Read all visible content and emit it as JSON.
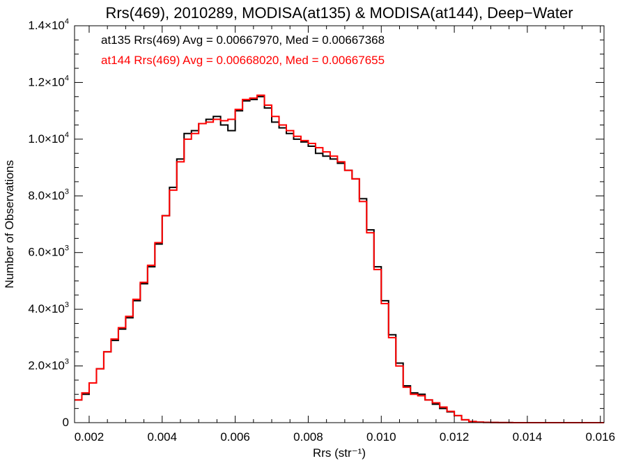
{
  "chart_data": {
    "type": "line",
    "title": "Rrs(469), 2010289, MODISA(at135) & MODISA(at144), Deep−Water",
    "xlabel": "Rrs (str⁻¹)",
    "ylabel": "Number of Observations",
    "xlim": [
      0.0016,
      0.0161
    ],
    "ylim": [
      0,
      14000
    ],
    "x_ticks": [
      0.002,
      0.004,
      0.006,
      0.008,
      0.01,
      0.012,
      0.014,
      0.016
    ],
    "x_tick_labels": [
      "0.002",
      "0.004",
      "0.006",
      "0.008",
      "0.010",
      "0.012",
      "0.014",
      "0.016"
    ],
    "y_ticks": [
      {
        "value": 0,
        "mant": "0",
        "exp": ""
      },
      {
        "value": 2000,
        "mant": "2.0×10",
        "exp": "3"
      },
      {
        "value": 4000,
        "mant": "4.0×10",
        "exp": "3"
      },
      {
        "value": 6000,
        "mant": "6.0×10",
        "exp": "3"
      },
      {
        "value": 8000,
        "mant": "8.0×10",
        "exp": "3"
      },
      {
        "value": 10000,
        "mant": "1.0×10",
        "exp": "4"
      },
      {
        "value": 12000,
        "mant": "1.2×10",
        "exp": "4"
      },
      {
        "value": 14000,
        "mant": "1.4×10",
        "exp": "4"
      }
    ],
    "series": [
      {
        "label": "at135 Rrs(469) Avg = 0.00667970, Med = 0.00667368",
        "color": "#000000",
        "x": [
          0.0016,
          0.0018,
          0.002,
          0.0022,
          0.0024,
          0.0026,
          0.0028,
          0.003,
          0.0032,
          0.0034,
          0.0036,
          0.0038,
          0.004,
          0.0042,
          0.0044,
          0.0046,
          0.0048,
          0.005,
          0.0052,
          0.0054,
          0.0056,
          0.0058,
          0.006,
          0.0062,
          0.0064,
          0.0066,
          0.0068,
          0.007,
          0.0072,
          0.0074,
          0.0076,
          0.0078,
          0.008,
          0.0082,
          0.0084,
          0.0086,
          0.0088,
          0.009,
          0.0092,
          0.0094,
          0.0096,
          0.0098,
          0.01,
          0.0102,
          0.0104,
          0.0106,
          0.0108,
          0.011,
          0.0112,
          0.0114,
          0.0116,
          0.0118,
          0.012,
          0.0122,
          0.0124,
          0.0126,
          0.0128,
          0.013,
          0.0132,
          0.0134,
          0.0136,
          0.014,
          0.015,
          0.0161
        ],
        "y": [
          800,
          1000,
          1400,
          1900,
          2500,
          2900,
          3300,
          3700,
          4300,
          4900,
          5500,
          6300,
          7300,
          8300,
          9300,
          10200,
          10300,
          10550,
          10700,
          10800,
          10500,
          10300,
          11000,
          11350,
          11400,
          11500,
          11100,
          10600,
          10400,
          10200,
          10000,
          9900,
          9750,
          9500,
          9400,
          9300,
          9150,
          8900,
          8600,
          7900,
          6800,
          5500,
          4300,
          3100,
          2100,
          1300,
          1050,
          1000,
          800,
          650,
          500,
          380,
          250,
          100,
          40,
          20,
          10,
          5,
          3,
          2,
          1,
          0,
          0,
          0
        ]
      },
      {
        "label": "at144 Rrs(469) Avg = 0.00668020, Med = 0.00667655",
        "color": "#ff0000",
        "x": [
          0.0016,
          0.0018,
          0.002,
          0.0022,
          0.0024,
          0.0026,
          0.0028,
          0.003,
          0.0032,
          0.0034,
          0.0036,
          0.0038,
          0.004,
          0.0042,
          0.0044,
          0.0046,
          0.0048,
          0.005,
          0.0052,
          0.0054,
          0.0056,
          0.0058,
          0.006,
          0.0062,
          0.0064,
          0.0066,
          0.0068,
          0.007,
          0.0072,
          0.0074,
          0.0076,
          0.0078,
          0.008,
          0.0082,
          0.0084,
          0.0086,
          0.0088,
          0.009,
          0.0092,
          0.0094,
          0.0096,
          0.0098,
          0.01,
          0.0102,
          0.0104,
          0.0106,
          0.0108,
          0.011,
          0.0112,
          0.0114,
          0.0116,
          0.0118,
          0.012,
          0.0122,
          0.0124,
          0.0126,
          0.0128,
          0.013,
          0.0132,
          0.0134,
          0.0136,
          0.014,
          0.015,
          0.0161
        ],
        "y": [
          800,
          1050,
          1400,
          1900,
          2500,
          2950,
          3350,
          3750,
          4350,
          4950,
          5550,
          6350,
          7300,
          8200,
          9200,
          10000,
          10200,
          10550,
          10600,
          10700,
          10650,
          10700,
          11050,
          11400,
          11450,
          11550,
          11200,
          10800,
          10500,
          10300,
          10100,
          9950,
          9850,
          9700,
          9550,
          9400,
          9200,
          8900,
          8600,
          7800,
          6700,
          5400,
          4200,
          3000,
          2000,
          1250,
          1000,
          950,
          800,
          700,
          550,
          400,
          250,
          100,
          40,
          20,
          10,
          5,
          3,
          2,
          1,
          0,
          0,
          0
        ]
      }
    ]
  }
}
